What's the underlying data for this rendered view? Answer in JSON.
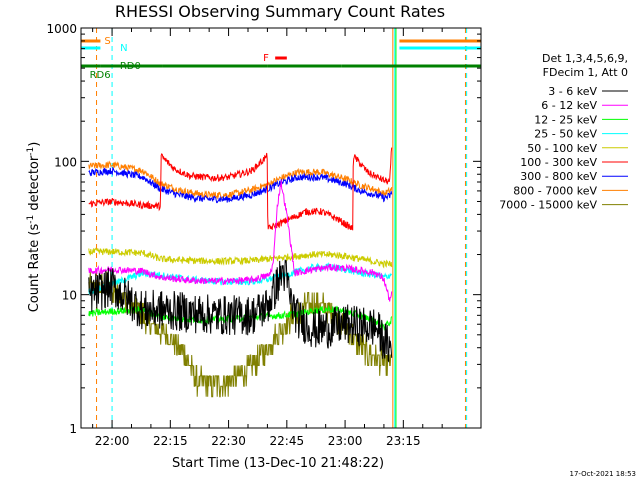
{
  "chart_data": {
    "type": "line",
    "title": "RHESSI Observing Summary Count Rates",
    "xlabel": "Start Time (13-Dec-10 21:48:22)",
    "ylabel_main": "Count Rate (s",
    "ylabel_sup1": "-1",
    "ylabel_mid": " detector",
    "ylabel_sup2": "-1",
    "ylabel_end": ")",
    "yscale": "log",
    "ylim": [
      1,
      1000
    ],
    "xlim_minutes": [
      -8,
      95
    ],
    "x_tick_labels": [
      "22:00",
      "22:15",
      "22:30",
      "22:45",
      "23:00",
      "23:15"
    ],
    "x_tick_minutes": [
      0,
      15,
      30,
      45,
      60,
      75
    ],
    "y_tick_labels": [
      "1",
      "10",
      "100",
      "1000"
    ],
    "y_tick_values": [
      1,
      10,
      100,
      1000
    ],
    "legend_header": [
      "Det 1,3,4,5,6,9,",
      "FDecim 1, Att 0"
    ],
    "series": [
      {
        "name": "3 - 6 keV",
        "color": "#000000",
        "style": "spiky",
        "x": [
          -6,
          0,
          8,
          13,
          20,
          28,
          36,
          40,
          42,
          44,
          45,
          46,
          48,
          52,
          56,
          60,
          64,
          68,
          70,
          71,
          72
        ],
        "y": [
          10,
          11.5,
          7.6,
          7.7,
          7.3,
          7.0,
          7.0,
          8.2,
          11,
          15,
          13,
          9,
          6.5,
          5.5,
          5.6,
          6,
          5.8,
          5.7,
          4.5,
          4.2,
          3.8
        ]
      },
      {
        "name": "6 - 12 keV",
        "color": "#ff00ff",
        "style": "noisy",
        "x": [
          -6,
          0,
          8,
          12.5,
          20,
          28,
          36,
          40.5,
          41.5,
          42.5,
          43.5,
          45,
          47,
          52,
          56,
          60,
          64,
          68,
          70,
          71.5,
          72
        ],
        "y": [
          15,
          15.5,
          15,
          13.5,
          12.8,
          12.6,
          12.9,
          14,
          17,
          45,
          70,
          40,
          14.5,
          15.5,
          16,
          15.8,
          15.2,
          14.5,
          13,
          9,
          10
        ]
      },
      {
        "name": "12 - 25 keV",
        "color": "#00ff00",
        "style": "noisy",
        "x": [
          -6,
          0,
          8,
          12.5,
          20,
          28,
          36,
          40,
          44,
          48,
          52,
          56,
          60,
          64,
          68,
          70,
          71.5,
          72
        ],
        "y": [
          7.2,
          7.5,
          7.7,
          6.8,
          6.5,
          6.5,
          6.8,
          6.9,
          7,
          7.2,
          7.6,
          7.8,
          7.5,
          7.0,
          6.3,
          5.8,
          6.2,
          6.5
        ]
      },
      {
        "name": "25 - 50 keV",
        "color": "#00ffff",
        "style": "noisy",
        "x": [
          -6,
          0,
          8,
          12.5,
          20,
          28,
          36,
          40,
          44,
          48,
          52,
          56,
          60,
          64,
          68,
          70,
          71.5,
          72
        ],
        "y": [
          10.5,
          12,
          14.5,
          14,
          13,
          12.5,
          12.5,
          13,
          13.8,
          15,
          16,
          16.2,
          15.5,
          14.5,
          14,
          13.5,
          14,
          14.2
        ]
      },
      {
        "name": "50 - 100 keV",
        "color": "#cccc00",
        "style": "noisy",
        "x": [
          -6,
          0,
          8,
          12.5,
          20,
          28,
          36,
          40,
          44,
          48,
          52,
          56,
          60,
          64,
          68,
          70,
          71.5,
          72
        ],
        "y": [
          21,
          21,
          20.5,
          18.5,
          18,
          17.8,
          18,
          18.5,
          19,
          19.5,
          20,
          20,
          19.5,
          18.5,
          17.5,
          17,
          17,
          17
        ]
      },
      {
        "name": "100 - 300 keV",
        "color": "#ff0000",
        "style": "noisy",
        "x": [
          -6,
          0,
          8,
          12.5,
          12.6,
          16,
          20,
          26,
          30,
          36,
          40,
          40.1,
          44,
          50,
          54,
          58,
          62,
          62.1,
          66,
          70,
          71.5,
          72
        ],
        "y": [
          48,
          50,
          47,
          46,
          110,
          88,
          78,
          75,
          76,
          85,
          110,
          31,
          35,
          42,
          42,
          37,
          31,
          110,
          82,
          72,
          70,
          130
        ]
      },
      {
        "name": "300 - 800 keV",
        "color": "#0000ff",
        "style": "noisy",
        "x": [
          -6,
          0,
          8,
          12.5,
          18,
          24,
          30,
          36,
          40,
          44,
          48,
          54,
          60,
          64,
          68,
          70,
          71.5,
          72
        ],
        "y": [
          82,
          85,
          76,
          62,
          55,
          52,
          52,
          56,
          62,
          70,
          76,
          76,
          68,
          60,
          56,
          53,
          55,
          58
        ]
      },
      {
        "name": "800 - 7000 keV",
        "color": "#ff7f00",
        "style": "noisy",
        "x": [
          -6,
          0,
          8,
          12.5,
          18,
          24,
          30,
          36,
          40,
          44,
          48,
          54,
          60,
          64,
          68,
          70,
          71.5,
          72
        ],
        "y": [
          92,
          94,
          85,
          68,
          60,
          56,
          56,
          61,
          67,
          76,
          83,
          83,
          74,
          66,
          61,
          57,
          60,
          62
        ]
      },
      {
        "name": "7000 - 15000 keV",
        "color": "#808000",
        "style": "olive",
        "x": [
          -6,
          -2,
          2,
          6,
          10,
          14,
          18,
          22,
          26,
          30,
          34,
          38,
          42,
          46,
          50,
          54,
          58,
          62,
          66,
          70,
          71.5,
          72
        ],
        "y": [
          11,
          11.5,
          10,
          8,
          6,
          5,
          3.8,
          2.2,
          2.1,
          2.2,
          2.6,
          3.3,
          4.8,
          6.8,
          8.2,
          8.3,
          6.8,
          4.8,
          3.6,
          3.1,
          3.0,
          3.2
        ]
      }
    ],
    "flags": [
      {
        "label": "S",
        "color": "#ff7f00",
        "segments": [
          [
            -8,
            -3
          ],
          [
            74,
            95
          ]
        ]
      },
      {
        "label": "N",
        "color": "#00ffff",
        "segments": [
          [
            -8,
            -3
          ],
          [
            74,
            95
          ]
        ]
      },
      {
        "label": "F",
        "color": "#ff0000",
        "segments": [
          [
            42,
            45
          ]
        ]
      },
      {
        "label": "RD0",
        "color": "#008000",
        "segments": [
          [
            -8,
            -3
          ],
          [
            -3,
            13
          ],
          [
            13,
            40
          ],
          [
            40,
            59
          ],
          [
            59,
            95
          ]
        ]
      },
      {
        "label": "RD6",
        "color": "#008000",
        "segments": [
          [
            -8,
            -6.5
          ],
          [
            -2,
            13
          ]
        ]
      }
    ],
    "vlines": [
      {
        "x": -4,
        "color": "#ff7f00",
        "dashed": true
      },
      {
        "x": 0,
        "color": "#00ffff",
        "dashed": true
      },
      {
        "x": 72.3,
        "color": "#ff7f00",
        "dashed": false
      },
      {
        "x": 72.8,
        "color": "#00ffff",
        "dashed": false
      },
      {
        "x": 73.1,
        "color": "#00ff00",
        "dashed": false
      },
      {
        "x": 91.0,
        "color": "#ff7f00",
        "dashed": true
      },
      {
        "x": 91.3,
        "color": "#00ffff",
        "dashed": true
      }
    ],
    "timestamp": "17-Oct-2021 18:53"
  }
}
